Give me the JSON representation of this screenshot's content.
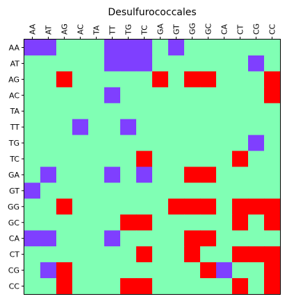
{
  "chart_data": {
    "type": "heatmap",
    "title": "Desulfurococcales",
    "xlabel": "",
    "ylabel": "",
    "x_categories": [
      "AA",
      "AT",
      "AG",
      "AC",
      "TA",
      "TT",
      "TG",
      "TC",
      "GA",
      "GT",
      "GG",
      "GC",
      "CA",
      "CT",
      "CG",
      "CC"
    ],
    "y_categories": [
      "AA",
      "AT",
      "AG",
      "AC",
      "TA",
      "TT",
      "TG",
      "TC",
      "GA",
      "GT",
      "GG",
      "GC",
      "CA",
      "CT",
      "CG",
      "CC"
    ],
    "x_tick_position": "top",
    "grid": false,
    "legend": "none",
    "value_levels": {
      "-1": "#7f3fff",
      "0": "#80ffb4",
      "1": "#ff0000"
    },
    "colors": {
      "low": "#7f3fff",
      "mid": "#80ffb4",
      "high": "#ff0000"
    },
    "matrix": [
      [
        -1,
        -1,
        0,
        0,
        0,
        -1,
        -1,
        -1,
        0,
        -1,
        0,
        0,
        0,
        0,
        0,
        0
      ],
      [
        0,
        0,
        0,
        0,
        0,
        -1,
        -1,
        -1,
        0,
        0,
        0,
        0,
        0,
        0,
        -1,
        0
      ],
      [
        0,
        0,
        1,
        0,
        0,
        0,
        0,
        0,
        1,
        0,
        1,
        1,
        0,
        0,
        0,
        1
      ],
      [
        0,
        0,
        0,
        0,
        0,
        -1,
        0,
        0,
        0,
        0,
        0,
        0,
        0,
        0,
        0,
        1
      ],
      [
        0,
        0,
        0,
        0,
        0,
        0,
        0,
        0,
        0,
        0,
        0,
        0,
        0,
        0,
        0,
        0
      ],
      [
        0,
        0,
        0,
        -1,
        0,
        0,
        -1,
        0,
        0,
        0,
        0,
        0,
        0,
        0,
        0,
        0
      ],
      [
        0,
        0,
        0,
        0,
        0,
        0,
        0,
        0,
        0,
        0,
        0,
        0,
        0,
        0,
        -1,
        0
      ],
      [
        0,
        0,
        0,
        0,
        0,
        0,
        0,
        1,
        0,
        0,
        0,
        0,
        0,
        1,
        0,
        0
      ],
      [
        0,
        -1,
        0,
        0,
        0,
        -1,
        0,
        -1,
        0,
        0,
        1,
        1,
        0,
        0,
        0,
        0
      ],
      [
        -1,
        0,
        0,
        0,
        0,
        0,
        0,
        0,
        0,
        0,
        0,
        0,
        0,
        0,
        0,
        0
      ],
      [
        0,
        0,
        1,
        0,
        0,
        0,
        0,
        0,
        0,
        1,
        1,
        1,
        0,
        1,
        1,
        1
      ],
      [
        0,
        0,
        0,
        0,
        0,
        0,
        1,
        1,
        0,
        0,
        0,
        0,
        0,
        1,
        0,
        1
      ],
      [
        -1,
        -1,
        0,
        0,
        0,
        -1,
        0,
        0,
        0,
        0,
        1,
        1,
        0,
        0,
        0,
        0
      ],
      [
        0,
        0,
        0,
        0,
        0,
        0,
        0,
        1,
        0,
        0,
        1,
        0,
        0,
        1,
        1,
        1
      ],
      [
        0,
        -1,
        1,
        0,
        0,
        0,
        0,
        0,
        0,
        0,
        0,
        1,
        -1,
        0,
        0,
        1
      ],
      [
        0,
        0,
        1,
        0,
        0,
        0,
        1,
        1,
        0,
        0,
        0,
        0,
        0,
        1,
        0,
        1
      ]
    ]
  }
}
